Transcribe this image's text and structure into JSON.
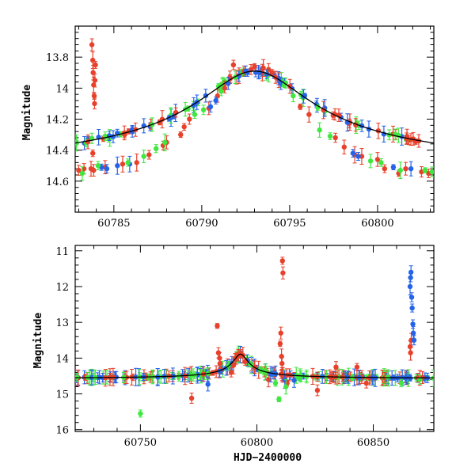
{
  "colors": {
    "red": "#e8402a",
    "blue": "#2563e8",
    "green": "#3ee83e",
    "model": "#000000"
  },
  "chart_data": [
    {
      "type": "scatter",
      "panel": "top",
      "title": "",
      "xlabel": "",
      "ylabel": "Magnitude",
      "xlim": [
        60782.8,
        60803.2
      ],
      "ylim": [
        14.8,
        13.6
      ],
      "y_inverted": true,
      "grid": false,
      "x_ticks": [
        60785,
        60790,
        60795,
        60800
      ],
      "x_tick_labels": [
        "60785",
        "60790",
        "60795",
        "60800"
      ],
      "y_ticks": [
        13.8,
        14.0,
        14.2,
        14.4,
        14.6
      ],
      "y_tick_labels": [
        "13.8",
        "14",
        "14.2",
        "14.4",
        "14.6"
      ],
      "model_curve": {
        "peak_t": 60793.0,
        "peak_mag": 13.89,
        "baseline_mag": 14.55,
        "width_days": 3.4
      },
      "series": [
        {
          "color": "red",
          "points": [
            [
              60783.0,
              14.53
            ],
            [
              60783.3,
              14.52
            ],
            [
              60783.7,
              14.52
            ],
            [
              60783.75,
              13.72
            ],
            [
              60783.8,
              13.82
            ],
            [
              60783.82,
              13.9
            ],
            [
              60783.85,
              13.98
            ],
            [
              60783.88,
              14.05
            ],
            [
              60783.9,
              14.1
            ],
            [
              60783.92,
              13.95
            ],
            [
              60783.95,
              13.85
            ],
            [
              60783.8,
              14.42
            ],
            [
              60783.85,
              14.53
            ],
            [
              60784.5,
              14.51
            ],
            [
              60785.5,
              14.49
            ],
            [
              60786.3,
              14.48
            ],
            [
              60787.0,
              14.43
            ],
            [
              60787.8,
              14.37
            ],
            [
              60788.0,
              14.35
            ],
            [
              60788.8,
              14.3
            ],
            [
              60789.0,
              14.25
            ],
            [
              60789.3,
              14.2
            ],
            [
              60790.4,
              14.13
            ],
            [
              60790.9,
              14.05
            ],
            [
              60791.3,
              14.0
            ],
            [
              60791.6,
              13.93
            ],
            [
              60791.8,
              13.85
            ],
            [
              60792.4,
              13.89
            ],
            [
              60792.8,
              13.88
            ],
            [
              60793.0,
              13.86
            ],
            [
              60793.5,
              13.87
            ],
            [
              60793.8,
              13.88
            ],
            [
              60794.0,
              13.9
            ],
            [
              60794.2,
              13.93
            ],
            [
              60795.6,
              14.12
            ],
            [
              60796.1,
              14.17
            ],
            [
              60797.6,
              14.32
            ],
            [
              60798.1,
              14.38
            ],
            [
              60798.7,
              14.43
            ],
            [
              60799.1,
              14.44
            ],
            [
              60800.0,
              14.46
            ],
            [
              60800.4,
              14.52
            ],
            [
              60801.2,
              14.55
            ],
            [
              60801.6,
              14.52
            ],
            [
              60802.5,
              14.54
            ],
            [
              60802.9,
              14.55
            ]
          ]
        },
        {
          "color": "blue",
          "points": [
            [
              60784.3,
              14.51
            ],
            [
              60784.6,
              14.52
            ],
            [
              60785.2,
              14.5
            ],
            [
              60785.9,
              14.49
            ],
            [
              60790.5,
              14.12
            ],
            [
              60790.8,
              14.08
            ],
            [
              60791.5,
              13.97
            ],
            [
              60792.5,
              13.89
            ],
            [
              60792.6,
              13.9
            ],
            [
              60793.3,
              13.9
            ],
            [
              60793.7,
              13.91
            ],
            [
              60794.5,
              13.97
            ],
            [
              60798.6,
              14.42
            ],
            [
              60798.9,
              14.44
            ],
            [
              60800.9,
              14.51
            ],
            [
              60801.9,
              14.52
            ]
          ]
        },
        {
          "color": "green",
          "points": [
            [
              60783.2,
              14.55
            ],
            [
              60784.1,
              14.5
            ],
            [
              60785.8,
              14.48
            ],
            [
              60786.7,
              14.44
            ],
            [
              60787.4,
              14.39
            ],
            [
              60787.9,
              14.35
            ],
            [
              60789.6,
              14.17
            ],
            [
              60790.1,
              14.14
            ],
            [
              60791.1,
              14.02
            ],
            [
              60791.9,
              13.93
            ],
            [
              60794.7,
              13.98
            ],
            [
              60795.2,
              14.05
            ],
            [
              60796.7,
              14.27
            ],
            [
              60797.3,
              14.31
            ],
            [
              60799.6,
              14.47
            ],
            [
              60800.2,
              14.48
            ],
            [
              60801.3,
              14.53
            ],
            [
              60802.7,
              14.53
            ],
            [
              60803.1,
              14.54
            ]
          ]
        }
      ]
    },
    {
      "type": "scatter",
      "panel": "bottom",
      "title": "",
      "xlabel": "HJD−2400000",
      "ylabel": "Magnitude",
      "xlim": [
        60722,
        60876
      ],
      "ylim": [
        16.05,
        10.85
      ],
      "y_inverted": true,
      "grid": false,
      "x_ticks": [
        60750,
        60800,
        60850
      ],
      "x_tick_labels": [
        "60750",
        "60800",
        "60850"
      ],
      "y_ticks": [
        11,
        12,
        13,
        14,
        15,
        16
      ],
      "y_tick_labels": [
        "11",
        "12",
        "13",
        "14",
        "15",
        "16"
      ],
      "model_curve": {
        "peak_t": 60793.0,
        "peak_mag": 13.89,
        "baseline_mag": 14.58,
        "width_days": 3.4
      },
      "baseline_mag": 14.58,
      "series": [
        {
          "color": "red",
          "points": [
            [
              60772,
              15.12
            ],
            [
              60783,
              13.1
            ],
            [
              60783.5,
              13.85
            ],
            [
              60784,
              14.0
            ],
            [
              60784.2,
              14.15
            ],
            [
              60789,
              14.4
            ],
            [
              60790,
              14.2
            ],
            [
              60791,
              14.02
            ],
            [
              60792,
              13.92
            ],
            [
              60793,
              13.88
            ],
            [
              60794,
              13.92
            ],
            [
              60795,
              14.1
            ],
            [
              60805,
              14.6
            ],
            [
              60810,
              13.6
            ],
            [
              60810.3,
              13.3
            ],
            [
              60810.6,
              13.95
            ],
            [
              60810.8,
              14.15
            ],
            [
              60811,
              11.28
            ],
            [
              60811.2,
              11.62
            ],
            [
              60813,
              14.7
            ],
            [
              60826,
              14.9
            ],
            [
              60834,
              14.25
            ],
            [
              60843,
              14.25
            ],
            [
              60847,
              14.7
            ],
            [
              60865.8,
              13.68
            ],
            [
              60866,
              13.85
            ],
            [
              60866.3,
              13.5
            ]
          ]
        },
        {
          "color": "blue",
          "points": [
            [
              60779,
              14.73
            ],
            [
              60806,
              14.45
            ],
            [
              60812,
              14.6
            ],
            [
              60816,
              14.62
            ],
            [
              60865.8,
              12.0
            ],
            [
              60866,
              11.75
            ],
            [
              60866.2,
              11.6
            ],
            [
              60866.5,
              12.3
            ],
            [
              60866.7,
              12.6
            ],
            [
              60867,
              13.05
            ],
            [
              60867.2,
              13.3
            ],
            [
              60867.5,
              13.5
            ]
          ]
        },
        {
          "color": "green",
          "points": [
            [
              60750,
              15.55
            ],
            [
              60808,
              14.7
            ],
            [
              60809.5,
              15.15
            ],
            [
              60812.5,
              14.8
            ],
            [
              60818,
              14.55
            ],
            [
              60841,
              14.55
            ],
            [
              60862,
              14.7
            ],
            [
              60870,
              14.6
            ]
          ]
        }
      ]
    }
  ]
}
